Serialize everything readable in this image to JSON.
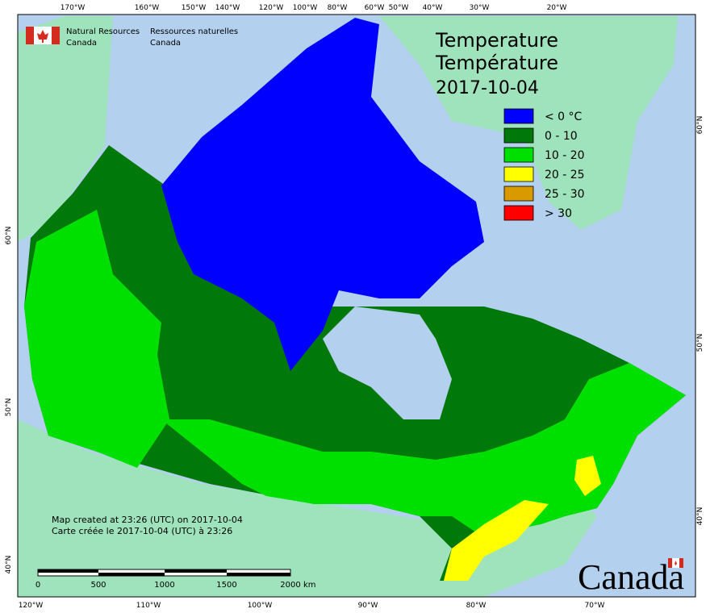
{
  "header": {
    "agency_en": [
      "Natural Resources",
      "Canada"
    ],
    "agency_fr": [
      "Ressources naturelles",
      "Canada"
    ]
  },
  "title": [
    "Temperature",
    "Température"
  ],
  "date": "2017-10-04",
  "legend": [
    {
      "label": "< 0 °C",
      "color": "#0000ff"
    },
    {
      "label": "0 - 10",
      "color": "#00780a"
    },
    {
      "label": "10 - 20",
      "color": "#00e000"
    },
    {
      "label": "20 - 25",
      "color": "#ffff00"
    },
    {
      "label": "25 - 30",
      "color": "#d99a00"
    },
    {
      "label": "> 30",
      "color": "#ff0000"
    }
  ],
  "graticule": {
    "top": [
      "170°W",
      "160°W",
      "150°W",
      "140°W",
      "120°W",
      "100°W",
      "80°W",
      "60°W",
      "50°W",
      "40°W",
      "30°W",
      "20°W"
    ],
    "bottom": [
      "120°W",
      "110°W",
      "100°W",
      "90°W",
      "80°W",
      "70°W"
    ],
    "left": [
      "60°N",
      "50°N",
      "40°N"
    ],
    "right": [
      "60°N",
      "50°N",
      "40°N"
    ]
  },
  "credits": [
    "Map created at 23:26 (UTC) on 2017-10-04",
    "Carte créée le 2017-10-04 (UTC) à 23:26"
  ],
  "scale_bar": {
    "labels": [
      "0",
      "500",
      "1000",
      "1500",
      "2000"
    ],
    "unit": "km"
  },
  "wordmark": "Canada"
}
